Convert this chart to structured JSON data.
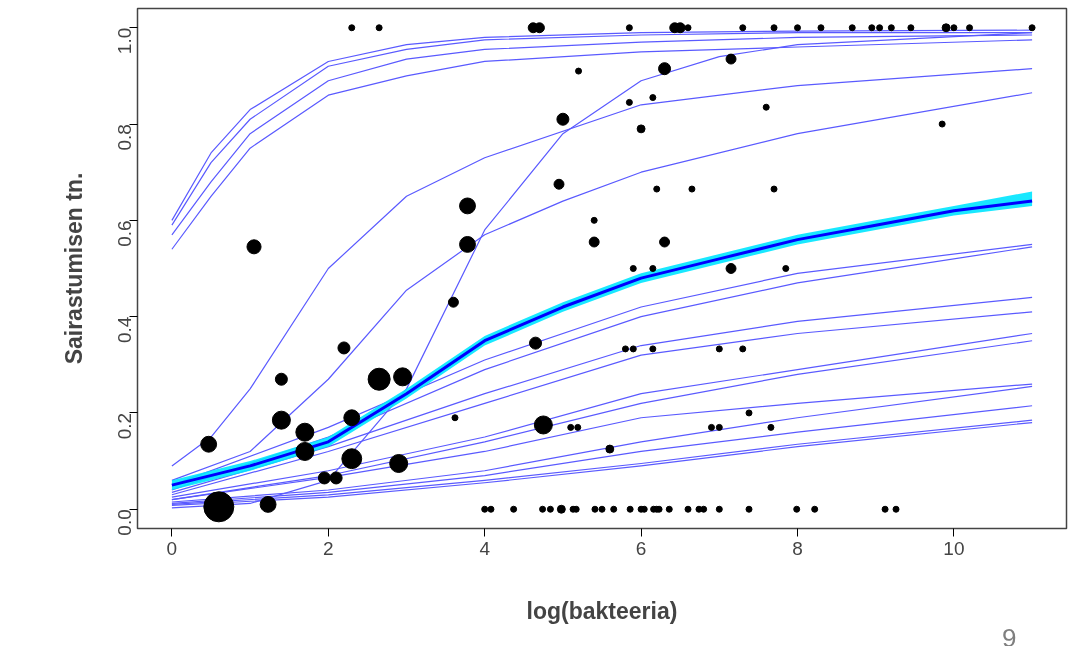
{
  "chart_data": {
    "type": "line",
    "xlabel": "log(bakteeria)",
    "ylabel": "Sairastumisen tn.",
    "annotations": [
      "9"
    ],
    "xlim": [
      -0.44,
      11.44
    ],
    "ylim": [
      -0.04,
      1.04
    ],
    "xticks": [
      0,
      2,
      4,
      6,
      8,
      10
    ],
    "yticks": [
      {
        "value": 0,
        "label": "0.0"
      },
      {
        "value": 0.2,
        "label": "0.2"
      },
      {
        "value": 0.4,
        "label": "0.4"
      },
      {
        "value": 0.6,
        "label": "0.6"
      },
      {
        "value": 0.8,
        "label": "0.8"
      },
      {
        "value": 1,
        "label": "1.0"
      }
    ],
    "grid": false,
    "line_style": "solid",
    "series": [
      {
        "color": "#5a5aff",
        "x": [
          0,
          0.5,
          1,
          2,
          3,
          4,
          6,
          8,
          11
        ],
        "values": [
          0.6,
          0.74,
          0.83,
          0.93,
          0.965,
          0.98,
          0.99,
          0.993,
          0.995
        ]
      },
      {
        "color": "#5a5aff",
        "x": [
          0,
          0.5,
          1,
          2,
          3,
          4,
          6,
          8,
          11
        ],
        "values": [
          0.59,
          0.72,
          0.81,
          0.92,
          0.955,
          0.975,
          0.985,
          0.99,
          0.99
        ]
      },
      {
        "color": "#5a5aff",
        "x": [
          0,
          0.5,
          1,
          2,
          3,
          4,
          6,
          8,
          11
        ],
        "values": [
          0.57,
          0.68,
          0.78,
          0.89,
          0.935,
          0.955,
          0.97,
          0.98,
          0.985
        ]
      },
      {
        "color": "#5a5aff",
        "x": [
          0,
          0.5,
          1,
          2,
          3,
          4,
          6,
          8,
          11
        ],
        "values": [
          0.54,
          0.65,
          0.75,
          0.86,
          0.9,
          0.93,
          0.95,
          0.96,
          0.975
        ]
      },
      {
        "color": "#5a5aff",
        "x": [
          0,
          0.5,
          1,
          2,
          3,
          4,
          6,
          8,
          11
        ],
        "values": [
          0.09,
          0.15,
          0.25,
          0.5,
          0.65,
          0.73,
          0.84,
          0.88,
          0.915
        ]
      },
      {
        "color": "#5a5aff",
        "x": [
          0,
          1,
          2,
          3,
          4,
          5,
          6,
          7,
          8,
          11
        ],
        "values": [
          0.003,
          0.012,
          0.06,
          0.25,
          0.58,
          0.78,
          0.89,
          0.94,
          0.965,
          0.99
        ]
      },
      {
        "color": "#5a5aff",
        "x": [
          0,
          1,
          2,
          3,
          4,
          5,
          6,
          8,
          11
        ],
        "values": [
          0.06,
          0.12,
          0.27,
          0.455,
          0.57,
          0.64,
          0.7,
          0.78,
          0.865
        ]
      },
      {
        "color": "#5a5aff",
        "x": [
          0,
          2,
          4,
          6,
          8,
          11
        ],
        "values": [
          0.05,
          0.17,
          0.31,
          0.42,
          0.49,
          0.55
        ]
      },
      {
        "color": "#5a5aff",
        "x": [
          0,
          2,
          4,
          6,
          8,
          11
        ],
        "values": [
          0.04,
          0.15,
          0.29,
          0.4,
          0.47,
          0.545
        ]
      },
      {
        "color": "#5a5aff",
        "x": [
          0,
          2,
          4,
          6,
          8,
          11
        ],
        "values": [
          0.035,
          0.13,
          0.24,
          0.34,
          0.39,
          0.44
        ]
      },
      {
        "color": "#5a5aff",
        "x": [
          0,
          2,
          4,
          6,
          8,
          11
        ],
        "values": [
          0.03,
          0.12,
          0.22,
          0.32,
          0.365,
          0.41
        ]
      },
      {
        "color": "#5a5aff",
        "x": [
          0,
          2,
          4,
          6,
          8,
          11
        ],
        "values": [
          0.025,
          0.08,
          0.15,
          0.24,
          0.29,
          0.365
        ]
      },
      {
        "color": "#5a5aff",
        "x": [
          0,
          2,
          4,
          6,
          8,
          11
        ],
        "values": [
          0.02,
          0.07,
          0.14,
          0.22,
          0.28,
          0.35
        ]
      },
      {
        "color": "#5a5aff",
        "x": [
          0,
          2,
          4,
          6,
          8,
          11
        ],
        "values": [
          0.02,
          0.066,
          0.12,
          0.19,
          0.22,
          0.26
        ]
      },
      {
        "color": "#5a5aff",
        "x": [
          0,
          2,
          4,
          6,
          8,
          11
        ],
        "values": [
          0.015,
          0.04,
          0.08,
          0.14,
          0.19,
          0.255
        ]
      },
      {
        "color": "#5a5aff",
        "x": [
          0,
          2,
          4,
          6,
          8,
          11
        ],
        "values": [
          0.012,
          0.035,
          0.07,
          0.12,
          0.16,
          0.215
        ]
      },
      {
        "color": "#5a5aff",
        "x": [
          0,
          2,
          4,
          6,
          8,
          11
        ],
        "values": [
          0.01,
          0.03,
          0.06,
          0.095,
          0.135,
          0.185
        ]
      },
      {
        "color": "#5a5aff",
        "x": [
          0,
          2,
          4,
          6,
          8,
          11
        ],
        "values": [
          0.008,
          0.025,
          0.055,
          0.09,
          0.13,
          0.18
        ]
      },
      {
        "color": "#0000ff",
        "x": [
          0,
          1,
          2,
          3,
          4,
          5,
          6,
          7,
          8,
          9,
          10,
          11
        ],
        "values": [
          0.05,
          0.09,
          0.14,
          0.24,
          0.35,
          0.42,
          0.48,
          0.52,
          0.56,
          0.59,
          0.62,
          0.64
        ],
        "lower": [
          0.04,
          0.08,
          0.13,
          0.23,
          0.34,
          0.41,
          0.47,
          0.51,
          0.55,
          0.58,
          0.61,
          0.63
        ],
        "upper": [
          0.06,
          0.1,
          0.15,
          0.25,
          0.36,
          0.43,
          0.49,
          0.53,
          0.57,
          0.6,
          0.63,
          0.66
        ]
      },
      {
        "type": "bubble",
        "color": "#000000",
        "x": [
          0.47,
          0.6,
          1.05,
          1.23,
          1.4,
          1.4,
          1.7,
          1.7,
          1.95,
          2.1,
          2.2,
          2.3,
          2.3,
          2.65,
          2.95,
          2.9,
          3.6,
          3.62,
          3.78,
          3.78,
          4.65,
          4.75,
          5.0,
          4.95,
          5.4,
          5.85,
          6.0,
          6.3,
          6.3,
          7.15,
          7.15,
          5.2,
          6.15,
          5.4,
          5.9,
          6.15,
          6.2,
          6.65,
          7.7,
          7.85,
          7.6,
          9.85,
          2.3,
          2.65,
          4.62,
          4.7,
          5.85,
          6.43,
          6.5,
          6.6,
          7.3,
          7.7,
          8.0,
          8.3,
          8.7,
          8.95,
          9.05,
          9.2,
          9.45,
          9.9,
          10.0,
          10.2,
          11.0,
          5.8,
          5.9,
          6.15,
          7.0,
          7.3,
          5.1,
          5.19,
          6.9,
          7.0,
          7.66,
          7.38,
          5.6,
          4.0,
          4.08,
          4.37,
          4.74,
          4.84,
          4.98,
          5.13,
          5.17,
          5.41,
          5.5,
          5.65,
          5.86,
          6.0,
          6.04,
          6.16,
          6.2,
          6.23,
          6.36,
          6.6,
          6.74,
          6.8,
          7.0,
          7.38,
          7.99,
          8.22,
          9.12,
          9.26
        ],
        "values": [
          0.135,
          0.005,
          0.545,
          0.01,
          0.27,
          0.185,
          0.16,
          0.12,
          0.065,
          0.065,
          0.335,
          0.19,
          0.105,
          0.27,
          0.275,
          0.095,
          0.43,
          0.19,
          0.63,
          0.55,
          0.345,
          0.175,
          0.81,
          0.675,
          0.555,
          0.845,
          0.79,
          0.915,
          0.555,
          0.935,
          0.5,
          0.91,
          0.855,
          0.6,
          0.5,
          0.5,
          0.665,
          0.665,
          0.665,
          0.5,
          0.835,
          0.8,
          1,
          1,
          1,
          1,
          1,
          1,
          1,
          1,
          1,
          1,
          1,
          1,
          1,
          1,
          1,
          1,
          1,
          1,
          1,
          1,
          1,
          0.333,
          0.333,
          0.333,
          0.333,
          0.333,
          0.17,
          0.17,
          0.17,
          0.17,
          0.17,
          0.2,
          0.125,
          0,
          0,
          0,
          0,
          0,
          0,
          0,
          0,
          0,
          0,
          0,
          0,
          0,
          0,
          0,
          0,
          0,
          0,
          0,
          0,
          0,
          0,
          0,
          0,
          0,
          0,
          0
        ],
        "sizes": [
          0.28,
          1,
          0.22,
          0.28,
          0.16,
          0.36,
          0.36,
          0.36,
          0.16,
          0.16,
          0.16,
          0.28,
          0.44,
          0.54,
          0.36,
          0.36,
          0.11,
          0.04,
          0.28,
          0.28,
          0.16,
          0.36,
          0.16,
          0.11,
          0.11,
          0.04,
          0.07,
          0.16,
          0.11,
          0.11,
          0.11,
          0.04,
          0.04,
          0.04,
          0.04,
          0.04,
          0.04,
          0.04,
          0.04,
          0.04,
          0.04,
          0.04,
          0.04,
          0.04,
          0.11,
          0.11,
          0.04,
          0.11,
          0.11,
          0.04,
          0.04,
          0.04,
          0.04,
          0.04,
          0.04,
          0.04,
          0.04,
          0.04,
          0.04,
          0.07,
          0.04,
          0.04,
          0.04,
          0.04,
          0.04,
          0.04,
          0.04,
          0.04,
          0.04,
          0.04,
          0.04,
          0.04,
          0.04,
          0.04,
          0.07,
          0.04,
          0.04,
          0.04,
          0.04,
          0.04,
          0.07,
          0.04,
          0.04,
          0.04,
          0.04,
          0.04,
          0.04,
          0.04,
          0.04,
          0.04,
          0.04,
          0.04,
          0.04,
          0.04,
          0.04,
          0.04,
          0.04,
          0.04,
          0.04,
          0.04,
          0.04,
          0.04
        ]
      }
    ]
  }
}
